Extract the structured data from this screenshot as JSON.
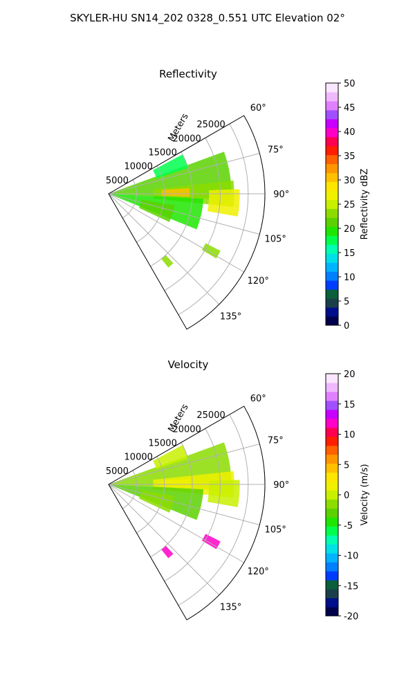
{
  "figure_title": "SKYLER-HU  SN14_202  0328_0.551 UTC Elevation 02°",
  "chart_data": [
    {
      "type": "polar-sector",
      "title": "Reflectivity",
      "radial_label": "Meters",
      "r_ticks": [
        "5000",
        "10000",
        "15000",
        "20000",
        "25000"
      ],
      "r_max": 28000,
      "theta_range_deg": [
        60,
        150
      ],
      "theta_ticks": [
        "60°",
        "75°",
        "90°",
        "105°",
        "120°",
        "135°"
      ],
      "theta_tick_values": [
        60,
        75,
        90,
        105,
        120,
        135
      ],
      "colorbar": {
        "label": "Reflectivity dBZ",
        "min": 0,
        "max": 50,
        "ticks": [
          "0",
          "5",
          "10",
          "15",
          "20",
          "25",
          "30",
          "35",
          "40",
          "45",
          "50"
        ],
        "colors": [
          "#00004c",
          "#000e8c",
          "#1a3f4a",
          "#0b5f3a",
          "#003cff",
          "#0080ff",
          "#00b4ff",
          "#00e0e6",
          "#00ffb0",
          "#00ff4c",
          "#1fe600",
          "#5ad200",
          "#8cdc00",
          "#c8f000",
          "#f0f000",
          "#ffe600",
          "#ffc000",
          "#ff9600",
          "#ff6000",
          "#ff1e00",
          "#ff0050",
          "#ff00c8",
          "#c800ff",
          "#a050ff",
          "#e080ff",
          "#f0b8ff",
          "#fbe6ff"
        ]
      },
      "echo_regions": [
        {
          "theta": [
            70,
            93
          ],
          "r": [
            400,
            22000
          ],
          "value": 21
        },
        {
          "theta": [
            84,
            96
          ],
          "r": [
            8000,
            22500
          ],
          "value": 24
        },
        {
          "theta": [
            86,
            92
          ],
          "r": [
            9500,
            14500
          ],
          "value": 30
        },
        {
          "theta": [
            88,
            100
          ],
          "r": [
            18000,
            23500
          ],
          "value": 26
        },
        {
          "theta": [
            93,
            112
          ],
          "r": [
            600,
            17000
          ],
          "value": 19
        },
        {
          "theta": [
            100,
            115
          ],
          "r": [
            6000,
            12000
          ],
          "value": 22
        },
        {
          "theta": [
            117,
            121
          ],
          "r": [
            19500,
            22500
          ],
          "value": 23
        },
        {
          "theta": [
            137,
            141
          ],
          "r": [
            15000,
            17000
          ],
          "value": 23
        },
        {
          "theta": [
            62,
            72
          ],
          "r": [
            9000,
            15000
          ],
          "value": 18
        }
      ]
    },
    {
      "type": "polar-sector",
      "title": "Velocity",
      "radial_label": "Meters",
      "r_ticks": [
        "5000",
        "10000",
        "15000",
        "20000",
        "25000"
      ],
      "r_max": 28000,
      "theta_range_deg": [
        60,
        150
      ],
      "theta_ticks": [
        "60°",
        "75°",
        "90°",
        "105°",
        "120°",
        "135°"
      ],
      "theta_tick_values": [
        60,
        75,
        90,
        105,
        120,
        135
      ],
      "colorbar": {
        "label": "Velocity (m/s)",
        "min": -20,
        "max": 20,
        "ticks": [
          "-20",
          "-15",
          "-10",
          "-5",
          "0",
          "5",
          "10",
          "15",
          "20"
        ],
        "colors": [
          "#00004c",
          "#000e8c",
          "#1a3f4a",
          "#0b5f3a",
          "#003cff",
          "#0080ff",
          "#00b4ff",
          "#00e0e6",
          "#00ffb0",
          "#00ff4c",
          "#1fe600",
          "#5ad200",
          "#8cdc00",
          "#c8f000",
          "#f0f000",
          "#ffe600",
          "#ffc000",
          "#ff9600",
          "#ff6000",
          "#ff1e00",
          "#ff0050",
          "#ff00c8",
          "#c800ff",
          "#a050ff",
          "#e080ff",
          "#f0b8ff",
          "#fbe6ff"
        ]
      },
      "echo_regions": [
        {
          "theta": [
            70,
            93
          ],
          "r": [
            400,
            22000
          ],
          "value": -1
        },
        {
          "theta": [
            84,
            96
          ],
          "r": [
            8000,
            22500
          ],
          "value": 1
        },
        {
          "theta": [
            86,
            92
          ],
          "r": [
            9500,
            14500
          ],
          "value": 2
        },
        {
          "theta": [
            88,
            100
          ],
          "r": [
            18000,
            23500
          ],
          "value": 0
        },
        {
          "theta": [
            93,
            112
          ],
          "r": [
            600,
            17000
          ],
          "value": -3
        },
        {
          "theta": [
            100,
            115
          ],
          "r": [
            6000,
            12000
          ],
          "value": -1
        },
        {
          "theta": [
            117,
            121
          ],
          "r": [
            19500,
            22500
          ],
          "value": 12
        },
        {
          "theta": [
            137,
            141
          ],
          "r": [
            15000,
            17000
          ],
          "value": 12
        },
        {
          "theta": [
            62,
            72
          ],
          "r": [
            9000,
            15000
          ],
          "value": 0
        }
      ]
    }
  ]
}
